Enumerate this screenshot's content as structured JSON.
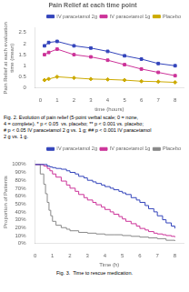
{
  "chart_data": [
    {
      "type": "line",
      "title": "Pain Relief at each time point",
      "xlabel": "time (hours)",
      "ylabel": "Pain Relief at each evaluation\ntime (mean)",
      "x": [
        0.25,
        0.5,
        1,
        2,
        3,
        4,
        5,
        6,
        7,
        8
      ],
      "series": [
        {
          "name": "IV paracetamol 2g",
          "color": "#3344bb",
          "marker": "square",
          "values": [
            1.9,
            2.05,
            2.1,
            1.9,
            1.8,
            1.65,
            1.45,
            1.3,
            1.1,
            1.0
          ]
        },
        {
          "name": "IV paracetamol 1g",
          "color": "#cc3399",
          "marker": "square",
          "values": [
            1.5,
            1.6,
            1.75,
            1.5,
            1.4,
            1.25,
            1.05,
            0.85,
            0.7,
            0.55
          ]
        },
        {
          "name": "Placebo",
          "color": "#ccaa00",
          "marker": "diamond",
          "values": [
            0.35,
            0.4,
            0.5,
            0.45,
            0.4,
            0.38,
            0.35,
            0.3,
            0.28,
            0.25
          ]
        }
      ],
      "xlim": [
        -0.3,
        8.5
      ],
      "xticks": [
        0,
        1,
        2,
        3,
        4,
        5,
        6,
        7,
        8
      ],
      "ylim": [
        0,
        2.7
      ],
      "yticks": [
        0,
        0.5,
        1.0,
        1.5,
        2.0,
        2.5
      ],
      "grid": false,
      "legend": "upper right",
      "caption": "Fig. 2. Evolution of pain relief (5-point verbal scale; 0 = none,\n4 = complete). * p < 0.05  vs. placebo; ** p < 0.001 vs. placebo;\n# p < 0.05 IV paracetamol 2 g vs. 1 g; ## p < 0.001 IV paracetamol\n2 g vs. 1 g."
    },
    {
      "type": "step",
      "xlabel": "Time (h)",
      "ylabel": "Proportion of Patients",
      "series": [
        {
          "name": "IV paracetamol 2g",
          "color": "#3344bb",
          "x": [
            0,
            0.5,
            0.7,
            0.85,
            1.0,
            1.2,
            1.5,
            1.8,
            2.0,
            2.3,
            2.5,
            2.8,
            3.0,
            3.3,
            3.5,
            3.8,
            4.0,
            4.3,
            4.5,
            4.8,
            5.0,
            5.2,
            5.5,
            5.8,
            6.0,
            6.3,
            6.5,
            6.8,
            7.0,
            7.3,
            7.5,
            7.8,
            8.0
          ],
          "values": [
            100,
            100,
            98,
            97,
            96,
            95,
            94,
            92,
            90,
            88,
            85,
            83,
            80,
            78,
            76,
            74,
            72,
            70,
            68,
            66,
            64,
            62,
            58,
            55,
            52,
            48,
            44,
            40,
            35,
            30,
            26,
            22,
            19
          ]
        },
        {
          "name": "IV paracetamol 1g",
          "color": "#cc3399",
          "x": [
            0,
            0.5,
            0.7,
            0.85,
            1.0,
            1.2,
            1.5,
            1.8,
            2.0,
            2.3,
            2.5,
            2.8,
            3.0,
            3.3,
            3.5,
            3.8,
            4.0,
            4.3,
            4.5,
            4.8,
            5.0,
            5.2,
            5.5,
            5.8,
            6.0,
            6.3,
            6.5,
            6.8,
            7.0,
            7.3,
            7.5,
            7.8,
            8.0
          ],
          "values": [
            100,
            98,
            95,
            92,
            88,
            84,
            79,
            74,
            70,
            66,
            62,
            58,
            55,
            52,
            49,
            46,
            43,
            40,
            37,
            34,
            31,
            28,
            25,
            22,
            19,
            17,
            15,
            13,
            12,
            11,
            10,
            9,
            8
          ]
        },
        {
          "name": "Placebo",
          "color": "#888888",
          "x": [
            0,
            0.3,
            0.5,
            0.6,
            0.7,
            0.8,
            0.9,
            1.0,
            1.2,
            1.5,
            1.8,
            2.0,
            2.5,
            3.0,
            3.5,
            4.0,
            4.5,
            5.0,
            5.5,
            6.0,
            6.5,
            7.0,
            7.5,
            8.0
          ],
          "values": [
            100,
            88,
            75,
            63,
            52,
            42,
            35,
            28,
            23,
            20,
            18,
            16,
            14,
            13,
            12,
            11,
            11,
            10,
            9,
            8,
            7,
            6,
            4,
            3
          ]
        }
      ],
      "xlim": [
        0,
        8.5
      ],
      "xticks": [
        0,
        1,
        2,
        3,
        4,
        5,
        6,
        7,
        8
      ],
      "ylim": [
        0,
        105
      ],
      "yticks": [
        {
          "value": 0,
          "label": "0%"
        },
        {
          "value": 10,
          "label": "10%"
        },
        {
          "value": 20,
          "label": "20%"
        },
        {
          "value": 30,
          "label": "30%"
        },
        {
          "value": 40,
          "label": "40%"
        },
        {
          "value": 50,
          "label": "50%"
        },
        {
          "value": 60,
          "label": "60%"
        },
        {
          "value": 70,
          "label": "70%"
        },
        {
          "value": 80,
          "label": "80%"
        },
        {
          "value": 90,
          "label": "90%"
        },
        {
          "value": 100,
          "label": "100%"
        }
      ],
      "grid": false,
      "legend": "upper right",
      "caption": "Fig. 3.  Time to rescue medication."
    }
  ]
}
